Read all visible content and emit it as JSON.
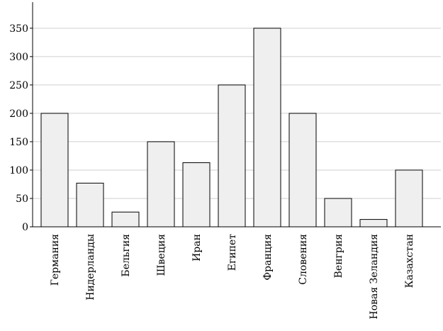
{
  "chart_data": {
    "type": "bar",
    "categories": [
      "Германия",
      "Нидерланды",
      "Бельгия",
      "Швеция",
      "Иран",
      "Египет",
      "Франция",
      "Словения",
      "Венгрия",
      "Новая Зеландия",
      "Казахстан"
    ],
    "values": [
      200,
      77,
      26,
      150,
      113,
      250,
      350,
      200,
      50,
      13,
      100
    ],
    "color": "#efefef",
    "ylim": [
      0,
      396
    ],
    "yticks": [
      0,
      50,
      100,
      150,
      200,
      250,
      300,
      350
    ],
    "grid": true
  }
}
